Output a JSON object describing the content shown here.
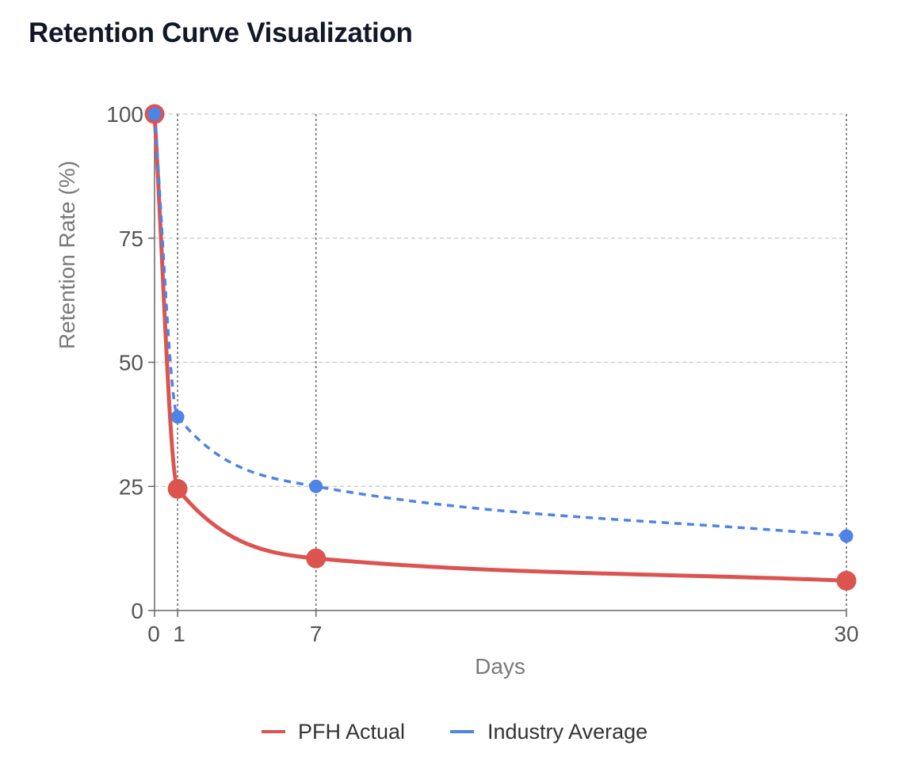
{
  "page": {
    "title": "Retention Curve Visualization"
  },
  "chart_data": {
    "type": "line",
    "title": "",
    "xlabel": "Days",
    "ylabel": "Retention Rate (%)",
    "xlim": [
      0,
      30
    ],
    "ylim": [
      0,
      100
    ],
    "x_ticks": [
      0,
      1,
      7,
      30
    ],
    "y_ticks": [
      0,
      25,
      50,
      75,
      100
    ],
    "grid": true,
    "legend_position": "bottom",
    "series": [
      {
        "name": "PFH Actual",
        "color": "#dc5450",
        "dashed": false,
        "x": [
          0,
          1,
          7,
          30
        ],
        "y": [
          100,
          24.5,
          10.5,
          6
        ]
      },
      {
        "name": "Industry Average",
        "color": "#4f83e6",
        "dashed": true,
        "x": [
          0,
          1,
          7,
          30
        ],
        "y": [
          100,
          39,
          25,
          15
        ]
      }
    ]
  }
}
